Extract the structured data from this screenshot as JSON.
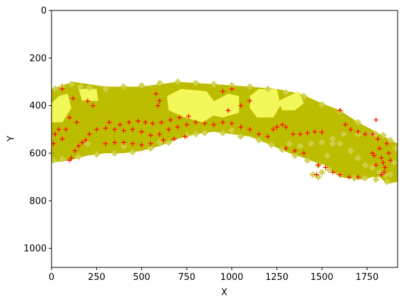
{
  "chart_data": {
    "type": "scatter",
    "title": "",
    "xlabel": "X",
    "ylabel": "Y",
    "xlim": [
      0,
      1920
    ],
    "ylim": [
      1080,
      0
    ],
    "y_inverted": true,
    "grid": false,
    "legend": "none",
    "xticks": [
      "0",
      "250",
      "500",
      "750",
      "1000",
      "1250",
      "1500",
      "1750"
    ],
    "xtick_values": [
      0,
      250,
      500,
      750,
      1000,
      1250,
      1500,
      1750
    ],
    "yticks": [
      "0",
      "200",
      "400",
      "600",
      "800",
      "1000"
    ],
    "ytick_values": [
      0,
      200,
      400,
      600,
      800,
      1000
    ],
    "colors": {
      "bright_region": "#f2f75a",
      "band": "#bdbd00",
      "diamond_marker": "#cfcf4a",
      "cross_marker": "#ff0000"
    },
    "regions": {
      "bright": [
        [
          [
            0,
            390
          ],
          [
            40,
            360
          ],
          [
            90,
            350
          ],
          [
            110,
            410
          ],
          [
            60,
            470
          ],
          [
            0,
            470
          ]
        ],
        [
          [
            150,
            330
          ],
          [
            250,
            330
          ],
          [
            260,
            380
          ],
          [
            170,
            380
          ]
        ],
        [
          [
            640,
            360
          ],
          [
            720,
            330
          ],
          [
            860,
            340
          ],
          [
            900,
            380
          ],
          [
            900,
            440
          ],
          [
            840,
            470
          ],
          [
            740,
            450
          ],
          [
            650,
            420
          ]
        ],
        [
          [
            880,
            390
          ],
          [
            980,
            350
          ],
          [
            1040,
            360
          ],
          [
            1040,
            430
          ],
          [
            950,
            450
          ],
          [
            890,
            440
          ]
        ],
        [
          [
            1100,
            360
          ],
          [
            1150,
            330
          ],
          [
            1250,
            330
          ],
          [
            1270,
            400
          ],
          [
            1230,
            450
          ],
          [
            1140,
            450
          ],
          [
            1100,
            410
          ]
        ],
        [
          [
            1260,
            380
          ],
          [
            1370,
            340
          ],
          [
            1400,
            390
          ],
          [
            1350,
            420
          ],
          [
            1280,
            420
          ]
        ]
      ],
      "band": [
        [
          [
            0,
            330
          ],
          [
            120,
            300
          ],
          [
            300,
            320
          ],
          [
            500,
            320
          ],
          [
            700,
            300
          ],
          [
            900,
            310
          ],
          [
            1100,
            320
          ],
          [
            1250,
            330
          ],
          [
            1380,
            350
          ],
          [
            1500,
            390
          ],
          [
            1600,
            420
          ],
          [
            1700,
            470
          ],
          [
            1800,
            510
          ],
          [
            1870,
            540
          ],
          [
            1920,
            560
          ],
          [
            1920,
            720
          ],
          [
            1860,
            730
          ],
          [
            1820,
            700
          ],
          [
            1780,
            700
          ],
          [
            1740,
            710
          ],
          [
            1680,
            710
          ],
          [
            1600,
            700
          ],
          [
            1560,
            680
          ],
          [
            1520,
            650
          ],
          [
            1470,
            640
          ],
          [
            1400,
            620
          ],
          [
            1320,
            600
          ],
          [
            1260,
            580
          ],
          [
            1200,
            560
          ],
          [
            1100,
            530
          ],
          [
            1000,
            520
          ],
          [
            900,
            510
          ],
          [
            800,
            520
          ],
          [
            700,
            540
          ],
          [
            600,
            570
          ],
          [
            500,
            590
          ],
          [
            400,
            600
          ],
          [
            300,
            600
          ],
          [
            200,
            610
          ],
          [
            100,
            630
          ],
          [
            0,
            640
          ]
        ]
      ]
    },
    "series": [
      {
        "marker": "diamond",
        "points": [
          [
            20,
            330
          ],
          [
            60,
            320
          ],
          [
            110,
            310
          ],
          [
            160,
            320
          ],
          [
            210,
            325
          ],
          [
            300,
            330
          ],
          [
            400,
            320
          ],
          [
            500,
            315
          ],
          [
            600,
            305
          ],
          [
            700,
            300
          ],
          [
            800,
            305
          ],
          [
            900,
            310
          ],
          [
            1000,
            315
          ],
          [
            1100,
            320
          ],
          [
            1200,
            330
          ],
          [
            1300,
            345
          ],
          [
            1400,
            360
          ],
          [
            1500,
            395
          ],
          [
            1600,
            425
          ],
          [
            1700,
            470
          ],
          [
            1800,
            520
          ],
          [
            1880,
            545
          ],
          [
            1910,
            580
          ],
          [
            1900,
            640
          ],
          [
            1880,
            690
          ],
          [
            1860,
            720
          ],
          [
            1800,
            710
          ],
          [
            1740,
            705
          ],
          [
            1680,
            705
          ],
          [
            1600,
            690
          ],
          [
            1540,
            670
          ],
          [
            1480,
            650
          ],
          [
            1420,
            630
          ],
          [
            1350,
            610
          ],
          [
            1280,
            585
          ],
          [
            1220,
            565
          ],
          [
            1150,
            545
          ],
          [
            1050,
            530
          ],
          [
            950,
            515
          ],
          [
            850,
            515
          ],
          [
            750,
            525
          ],
          [
            650,
            555
          ],
          [
            550,
            580
          ],
          [
            450,
            595
          ],
          [
            350,
            600
          ],
          [
            250,
            605
          ],
          [
            150,
            615
          ],
          [
            60,
            625
          ],
          [
            10,
            630
          ],
          [
            1450,
            690
          ],
          [
            1480,
            700
          ],
          [
            1500,
            680
          ],
          [
            1530,
            610
          ],
          [
            1560,
            560
          ],
          [
            1600,
            560
          ],
          [
            1660,
            590
          ],
          [
            1700,
            620
          ],
          [
            1740,
            650
          ],
          [
            1780,
            660
          ],
          [
            1820,
            680
          ],
          [
            1850,
            690
          ],
          [
            1320,
            560
          ],
          [
            1380,
            570
          ],
          [
            1440,
            560
          ],
          [
            1500,
            555
          ],
          [
            1560,
            540
          ],
          [
            1620,
            520
          ],
          [
            1700,
            520
          ],
          [
            1780,
            520
          ],
          [
            1840,
            525
          ],
          [
            200,
            560
          ],
          [
            400,
            570
          ],
          [
            600,
            555
          ],
          [
            800,
            520
          ],
          [
            1000,
            505
          ]
        ]
      },
      {
        "marker": "cross",
        "points": [
          [
            10,
            560
          ],
          [
            20,
            520
          ],
          [
            40,
            500
          ],
          [
            60,
            540
          ],
          [
            100,
            630
          ],
          [
            110,
            620
          ],
          [
            130,
            590
          ],
          [
            150,
            570
          ],
          [
            170,
            555
          ],
          [
            190,
            545
          ],
          [
            210,
            520
          ],
          [
            250,
            500
          ],
          [
            300,
            495
          ],
          [
            350,
            500
          ],
          [
            400,
            505
          ],
          [
            450,
            500
          ],
          [
            500,
            510
          ],
          [
            550,
            525
          ],
          [
            600,
            520
          ],
          [
            650,
            500
          ],
          [
            700,
            490
          ],
          [
            750,
            480
          ],
          [
            800,
            470
          ],
          [
            850,
            475
          ],
          [
            900,
            480
          ],
          [
            950,
            470
          ],
          [
            1000,
            475
          ],
          [
            1050,
            490
          ],
          [
            1100,
            500
          ],
          [
            1150,
            520
          ],
          [
            1200,
            530
          ],
          [
            1230,
            500
          ],
          [
            1250,
            490
          ],
          [
            1280,
            480
          ],
          [
            1300,
            490
          ],
          [
            1340,
            520
          ],
          [
            1380,
            520
          ],
          [
            1420,
            515
          ],
          [
            1460,
            510
          ],
          [
            1500,
            512
          ],
          [
            1600,
            420
          ],
          [
            1630,
            480
          ],
          [
            1660,
            500
          ],
          [
            1700,
            510
          ],
          [
            1740,
            520
          ],
          [
            1780,
            520
          ],
          [
            1800,
            460
          ],
          [
            1810,
            540
          ],
          [
            1820,
            580
          ],
          [
            1830,
            620
          ],
          [
            1840,
            640
          ],
          [
            1850,
            660
          ],
          [
            1845,
            680
          ],
          [
            1830,
            690
          ],
          [
            1800,
            650
          ],
          [
            1790,
            610
          ],
          [
            1780,
            600
          ],
          [
            1700,
            700
          ],
          [
            1650,
            700
          ],
          [
            1600,
            690
          ],
          [
            1560,
            680
          ],
          [
            1520,
            660
          ],
          [
            1480,
            650
          ],
          [
            1470,
            690
          ],
          [
            1400,
            600
          ],
          [
            1350,
            590
          ],
          [
            1300,
            580
          ],
          [
            580,
            350
          ],
          [
            600,
            380
          ],
          [
            590,
            400
          ],
          [
            950,
            340
          ],
          [
            1000,
            330
          ],
          [
            980,
            420
          ],
          [
            1050,
            400
          ],
          [
            1100,
            380
          ],
          [
            200,
            380
          ],
          [
            230,
            400
          ],
          [
            100,
            450
          ],
          [
            140,
            470
          ],
          [
            80,
            500
          ],
          [
            320,
            470
          ],
          [
            380,
            480
          ],
          [
            430,
            470
          ],
          [
            480,
            465
          ],
          [
            520,
            470
          ],
          [
            560,
            475
          ],
          [
            610,
            470
          ],
          [
            660,
            460
          ],
          [
            710,
            450
          ],
          [
            760,
            445
          ],
          [
            300,
            560
          ],
          [
            350,
            555
          ],
          [
            400,
            555
          ],
          [
            450,
            560
          ],
          [
            500,
            565
          ],
          [
            550,
            560
          ],
          [
            620,
            545
          ],
          [
            680,
            540
          ],
          [
            740,
            530
          ],
          [
            60,
            330
          ],
          [
            120,
            370
          ],
          [
            1860,
            560
          ],
          [
            1870,
            600
          ],
          [
            1880,
            630
          ]
        ]
      }
    ]
  }
}
